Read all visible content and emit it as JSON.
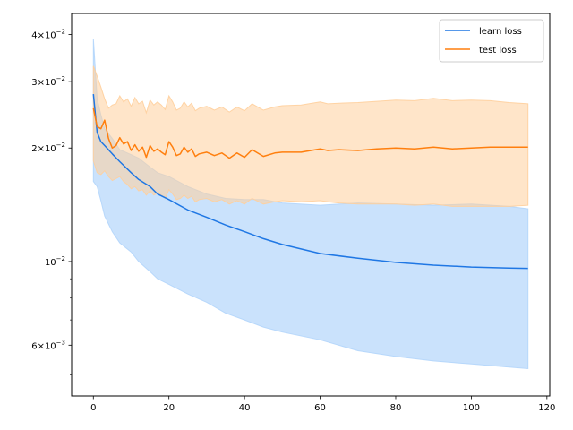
{
  "chart_data": {
    "type": "line",
    "title": "",
    "xlabel": "",
    "ylabel": "",
    "y_scale": "log",
    "xlim": [
      -5.75,
      120.75
    ],
    "ylim": [
      0.0044,
      0.0455
    ],
    "grid": false,
    "legend_position": "top-right",
    "x_ticks": [
      0,
      20,
      40,
      60,
      80,
      100,
      120
    ],
    "y_ticks": [
      {
        "value": 0.04,
        "mant": "4",
        "exp": "−2"
      },
      {
        "value": 0.03,
        "mant": "3",
        "exp": "−2"
      },
      {
        "value": 0.02,
        "mant": "2",
        "exp": "−2"
      },
      {
        "value": 0.01,
        "mant": "",
        "exp": "−2"
      },
      {
        "value": 0.006,
        "mant": "6",
        "exp": "−3"
      }
    ],
    "y_minor_ticks": [
      0.005,
      0.007,
      0.008,
      0.009
    ],
    "series": [
      {
        "name": "learn loss",
        "color": "#1f77e4",
        "band_color": "#b3d5fb",
        "band_alpha": 0.7,
        "x": [
          0,
          1,
          2,
          3,
          5,
          7,
          10,
          12,
          15,
          17,
          20,
          25,
          30,
          35,
          40,
          45,
          50,
          60,
          70,
          80,
          90,
          100,
          110,
          115
        ],
        "values": [
          0.0278,
          0.022,
          0.0208,
          0.0203,
          0.0193,
          0.0184,
          0.0172,
          0.0165,
          0.0158,
          0.0151,
          0.0146,
          0.0137,
          0.0131,
          0.0125,
          0.012,
          0.0115,
          0.0111,
          0.0105,
          0.0102,
          0.00995,
          0.00978,
          0.00967,
          0.00961,
          0.00959
        ],
        "upper": [
          0.039,
          0.027,
          0.0245,
          0.0225,
          0.0212,
          0.0198,
          0.0192,
          0.0188,
          0.0178,
          0.0172,
          0.0168,
          0.0158,
          0.0151,
          0.0147,
          0.0146,
          0.0146,
          0.0143,
          0.0141,
          0.0143,
          0.0142,
          0.0141,
          0.0142,
          0.014,
          0.0138
        ],
        "lower": [
          0.0163,
          0.0158,
          0.0145,
          0.0132,
          0.012,
          0.0112,
          0.0106,
          0.01,
          0.0094,
          0.009,
          0.0087,
          0.0082,
          0.0078,
          0.0073,
          0.007,
          0.0067,
          0.0065,
          0.0062,
          0.0058,
          0.0056,
          0.00545,
          0.00535,
          0.00525,
          0.0052
        ]
      },
      {
        "name": "test loss",
        "color": "#ff7f0e",
        "band_color": "#ffcf9c",
        "band_alpha": 0.55,
        "x": [
          0,
          1,
          2,
          3,
          4,
          5,
          6,
          7,
          8,
          9,
          10,
          11,
          12,
          13,
          14,
          15,
          16,
          17,
          18,
          19,
          20,
          21,
          22,
          23,
          24,
          25,
          26,
          27,
          28,
          30,
          32,
          34,
          36,
          38,
          40,
          42,
          45,
          48,
          50,
          55,
          60,
          62,
          65,
          70,
          75,
          80,
          85,
          90,
          95,
          100,
          105,
          110,
          115
        ],
        "values": [
          0.0255,
          0.0228,
          0.0225,
          0.0237,
          0.0212,
          0.02,
          0.0203,
          0.0213,
          0.0205,
          0.0208,
          0.0197,
          0.0204,
          0.0196,
          0.0201,
          0.0189,
          0.0203,
          0.0196,
          0.0199,
          0.0195,
          0.0192,
          0.0208,
          0.0201,
          0.0191,
          0.0193,
          0.0201,
          0.0195,
          0.0199,
          0.019,
          0.0193,
          0.0195,
          0.0191,
          0.0194,
          0.0188,
          0.0194,
          0.0189,
          0.0198,
          0.019,
          0.0194,
          0.0195,
          0.0195,
          0.0199,
          0.0197,
          0.0198,
          0.0197,
          0.0199,
          0.02,
          0.0199,
          0.0201,
          0.0199,
          0.02,
          0.0201,
          0.0201,
          0.0201
        ],
        "upper": [
          0.033,
          0.031,
          0.029,
          0.027,
          0.0255,
          0.026,
          0.0262,
          0.0275,
          0.0265,
          0.027,
          0.0258,
          0.0272,
          0.0262,
          0.0266,
          0.0248,
          0.0268,
          0.026,
          0.0265,
          0.026,
          0.0253,
          0.0275,
          0.0265,
          0.0252,
          0.0255,
          0.0265,
          0.0257,
          0.0263,
          0.0251,
          0.0255,
          0.0258,
          0.0252,
          0.0257,
          0.0249,
          0.0257,
          0.0251,
          0.0262,
          0.0252,
          0.0257,
          0.0259,
          0.026,
          0.0265,
          0.0262,
          0.0263,
          0.0264,
          0.0266,
          0.0268,
          0.0267,
          0.0271,
          0.0267,
          0.0268,
          0.0267,
          0.0264,
          0.0262
        ],
        "lower": [
          0.0185,
          0.0172,
          0.017,
          0.0174,
          0.0168,
          0.0164,
          0.0166,
          0.0168,
          0.0163,
          0.016,
          0.0156,
          0.0158,
          0.0154,
          0.0155,
          0.015,
          0.0154,
          0.015,
          0.0152,
          0.015,
          0.0147,
          0.0155,
          0.0151,
          0.0146,
          0.0147,
          0.015,
          0.0147,
          0.0149,
          0.0144,
          0.0146,
          0.0147,
          0.0144,
          0.0146,
          0.0142,
          0.0145,
          0.0142,
          0.0147,
          0.0142,
          0.0144,
          0.0145,
          0.0144,
          0.0145,
          0.0144,
          0.0143,
          0.0142,
          0.0142,
          0.0142,
          0.0141,
          0.0142,
          0.014,
          0.014,
          0.014,
          0.014,
          0.0141
        ]
      }
    ]
  }
}
